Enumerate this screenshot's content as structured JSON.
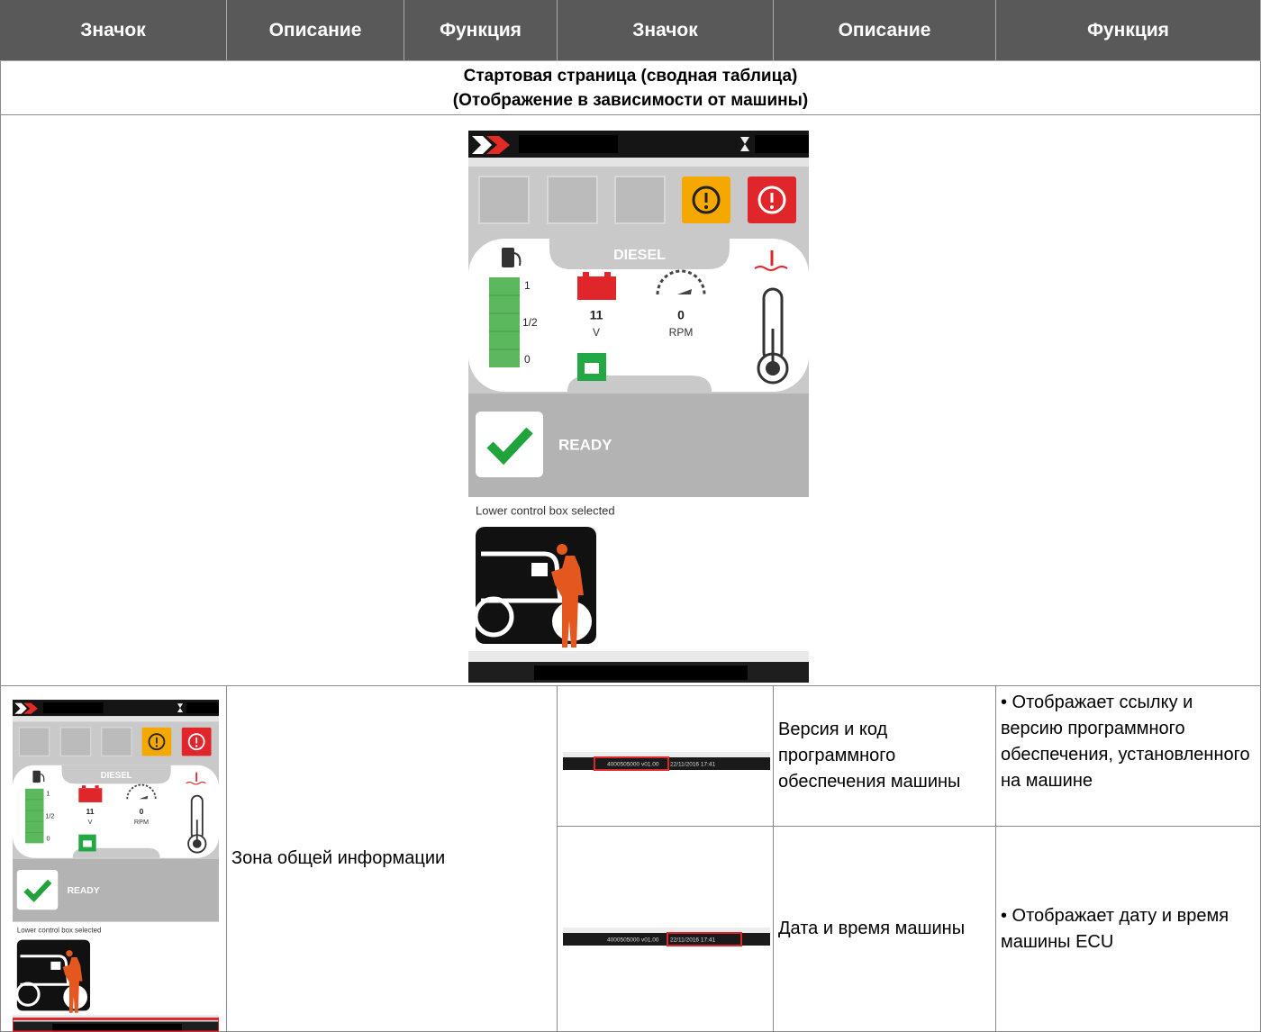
{
  "table": {
    "header": [
      "Значок",
      "Описание",
      "Функция",
      "Значок",
      "Описание",
      "Функция"
    ],
    "section_title": [
      "Стартовая страница (сводная таблица)",
      "(Отображение в зависимости от машины)"
    ],
    "rows": [
      {
        "description": "Зона общей информации",
        "items": [
          {
            "description": "Версия и код программного обеспечения машины",
            "function": "• Отображает ссылку и версию программного обеспечения, установленного на машине"
          },
          {
            "description": "Дата и время машины",
            "function": "• Отображает дату и время машины  ECU"
          }
        ]
      }
    ]
  },
  "screen": {
    "fuel_label": "DIESEL",
    "fuel_levels": [
      "1",
      "1/2",
      "0"
    ],
    "voltage": "11",
    "voltage_unit": "V",
    "rpm": "0",
    "rpm_unit": "RPM",
    "status": "READY",
    "message": "Lower control box selected"
  },
  "footer_code": [
    "4000505000 v01.00",
    "22/11/2016 17:41"
  ]
}
